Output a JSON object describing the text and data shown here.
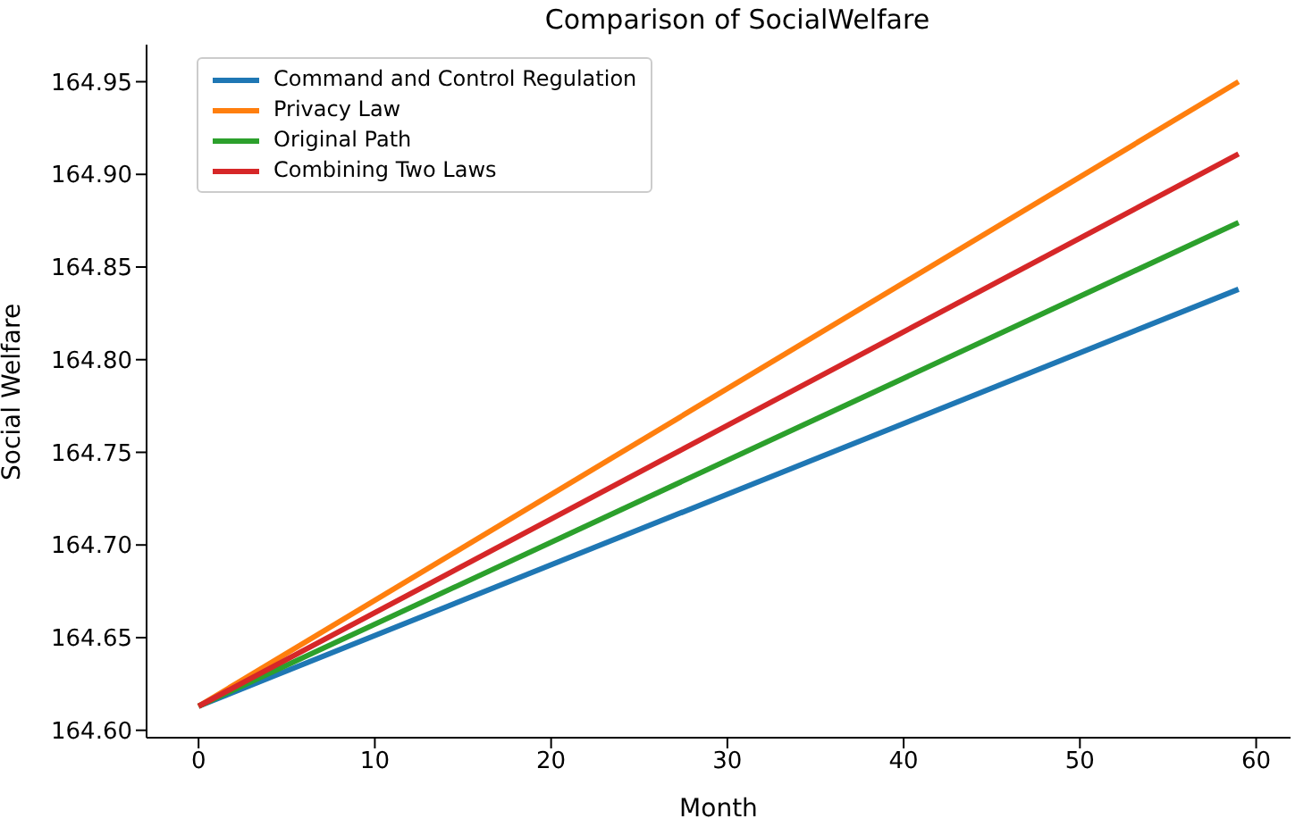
{
  "chart_data": {
    "type": "line",
    "title": "Comparison of SocialWelfare",
    "xlabel": "Month",
    "ylabel": "Social Welfare",
    "x": [
      0,
      59
    ],
    "series": [
      {
        "name": "Command and Control Regulation",
        "color": "#1f77b4",
        "values": [
          164.613,
          164.838
        ]
      },
      {
        "name": "Privacy Law",
        "color": "#ff7f0e",
        "values": [
          164.613,
          164.95
        ]
      },
      {
        "name": "Original Path",
        "color": "#2ca02c",
        "values": [
          164.613,
          164.874
        ]
      },
      {
        "name": "Combining Two Laws",
        "color": "#d62728",
        "values": [
          164.613,
          164.911
        ]
      }
    ],
    "xlim": [
      -2.95,
      61.95
    ],
    "xticks": [
      0,
      10,
      20,
      30,
      40,
      50,
      60
    ],
    "ylim": [
      164.596,
      164.97
    ],
    "yticks": [
      {
        "value": 164.6,
        "label": "164.60"
      },
      {
        "value": 164.65,
        "label": "164.65"
      },
      {
        "value": 164.7,
        "label": "164.70"
      },
      {
        "value": 164.75,
        "label": "164.75"
      },
      {
        "value": 164.8,
        "label": "164.80"
      },
      {
        "value": 164.85,
        "label": "164.85"
      },
      {
        "value": 164.9,
        "label": "164.90"
      },
      {
        "value": 164.95,
        "label": "164.95"
      }
    ],
    "grid": false,
    "legend": "top left",
    "marker": "none",
    "line_style": "solid"
  }
}
